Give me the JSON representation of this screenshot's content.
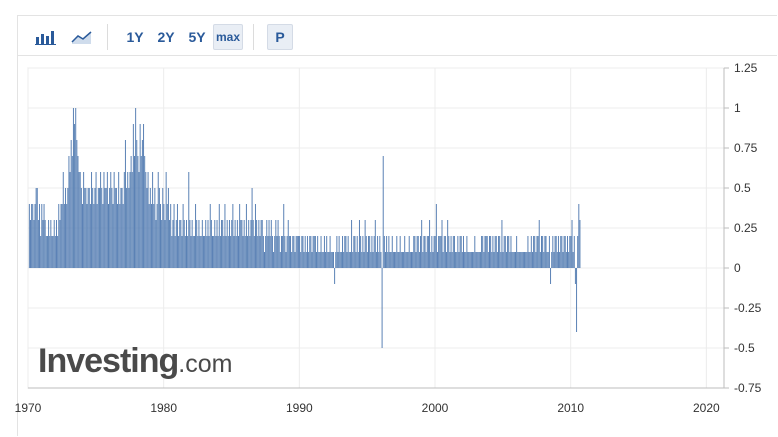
{
  "toolbar": {
    "bar_icon": "bar-chart-icon",
    "area_icon": "area-chart-icon",
    "ranges": [
      "1Y",
      "2Y",
      "5Y"
    ],
    "max_label": "max",
    "p_label": "P"
  },
  "watermark": {
    "brand": "Investing",
    "suffix": ".com"
  },
  "colors": {
    "bar": "#5b82b5",
    "grid": "#ececec",
    "axis": "#bdbdbd"
  },
  "chart_data": {
    "type": "bar",
    "title": "",
    "xlabel": "",
    "ylabel": "",
    "x_tick_labels": [
      "1970",
      "1980",
      "1990",
      "2000",
      "2010",
      "2020"
    ],
    "y_tick_labels": [
      "1.25",
      "1",
      "0.75",
      "0.5",
      "0.25",
      "0",
      "-0.25",
      "-0.5",
      "-0.75"
    ],
    "ylim": [
      -0.75,
      1.25
    ],
    "xlim": [
      1970.0,
      2021.3
    ],
    "grid": true,
    "x_start": 1970.1,
    "x_step": 0.08333,
    "values": [
      0.4,
      0.3,
      0.4,
      0.4,
      0.3,
      0.4,
      0.5,
      0.5,
      0.3,
      0.4,
      0.2,
      0.4,
      0.3,
      0.4,
      0.3,
      0.2,
      0.2,
      0.3,
      0.2,
      0.3,
      0.2,
      0.2,
      0.3,
      0.2,
      0.3,
      0.2,
      0.4,
      0.3,
      0.4,
      0.4,
      0.6,
      0.4,
      0.5,
      0.4,
      0.5,
      0.7,
      0.6,
      0.8,
      0.7,
      1.0,
      0.9,
      1.0,
      0.8,
      0.7,
      0.6,
      0.6,
      0.5,
      0.4,
      0.6,
      0.5,
      0.5,
      0.4,
      0.5,
      0.5,
      0.4,
      0.6,
      0.5,
      0.4,
      0.5,
      0.6,
      0.4,
      0.5,
      0.5,
      0.6,
      0.5,
      0.4,
      0.6,
      0.5,
      0.5,
      0.6,
      0.4,
      0.5,
      0.6,
      0.5,
      0.4,
      0.6,
      0.5,
      0.5,
      0.4,
      0.6,
      0.4,
      0.5,
      0.5,
      0.4,
      0.6,
      0.8,
      0.5,
      0.6,
      0.5,
      0.6,
      0.7,
      0.6,
      0.9,
      0.7,
      1.0,
      0.8,
      0.7,
      0.6,
      0.9,
      0.7,
      0.8,
      0.9,
      0.7,
      0.6,
      0.5,
      0.6,
      0.4,
      0.5,
      0.4,
      0.6,
      0.4,
      0.5,
      0.3,
      0.4,
      0.6,
      0.5,
      0.4,
      0.3,
      0.5,
      0.4,
      0.3,
      0.6,
      0.4,
      0.5,
      0.3,
      0.4,
      0.2,
      0.3,
      0.4,
      0.2,
      0.3,
      0.4,
      0.2,
      0.3,
      0.3,
      0.2,
      0.4,
      0.3,
      0.2,
      0.3,
      0.2,
      0.6,
      0.3,
      0.2,
      0.3,
      0.2,
      0.2,
      0.4,
      0.3,
      0.2,
      0.3,
      0.2,
      0.2,
      0.3,
      0.2,
      0.2,
      0.3,
      0.2,
      0.3,
      0.2,
      0.4,
      0.3,
      0.2,
      0.2,
      0.3,
      0.2,
      0.3,
      0.2,
      0.4,
      0.2,
      0.3,
      0.3,
      0.2,
      0.4,
      0.2,
      0.3,
      0.2,
      0.3,
      0.2,
      0.3,
      0.4,
      0.2,
      0.3,
      0.2,
      0.3,
      0.2,
      0.4,
      0.3,
      0.3,
      0.2,
      0.3,
      0.2,
      0.4,
      0.2,
      0.3,
      0.2,
      0.3,
      0.5,
      0.3,
      0.2,
      0.4,
      0.3,
      0.2,
      0.3,
      0.2,
      0.3,
      0.3,
      0.2,
      0.1,
      0.2,
      0.3,
      0.2,
      0.3,
      0.2,
      0.3,
      0.2,
      0.1,
      0.2,
      0.3,
      0.2,
      0.3,
      0.2,
      0.1,
      0.2,
      0.2,
      0.4,
      0.2,
      0.1,
      0.2,
      0.3,
      0.2,
      0.2,
      0.1,
      0.2,
      0.2,
      0.1,
      0.2,
      0.2,
      0.2,
      0.2,
      0.1,
      0.2,
      0.2,
      0.1,
      0.2,
      0.1,
      0.2,
      0.1,
      0.2,
      0.2,
      0.1,
      0.2,
      0.2,
      0.2,
      0.1,
      0.2,
      0.1,
      0.1,
      0.2,
      0.1,
      0.1,
      0.2,
      0.1,
      0.2,
      0.1,
      0.1,
      0.2,
      0.1,
      0.1,
      0.1,
      -0.1,
      0.1,
      0.2,
      0.1,
      0.2,
      0.1,
      0.1,
      0.2,
      0.1,
      0.2,
      0.2,
      0.1,
      0.2,
      0.1,
      0.1,
      0.3,
      0.1,
      0.2,
      0.2,
      0.1,
      0.2,
      0.1,
      0.3,
      0.2,
      0.1,
      0.2,
      0.1,
      0.3,
      0.2,
      0.1,
      0.2,
      0.2,
      0.1,
      0.2,
      0.1,
      0.2,
      0.3,
      0.1,
      0.2,
      0.1,
      0.2,
      0.1,
      -0.5,
      0.7,
      0.2,
      0.1,
      0.2,
      0.1,
      0.2,
      0.1,
      0.1,
      0.2,
      0.1,
      0.1,
      0.1,
      0.2,
      0.1,
      0.1,
      0.2,
      0.1,
      0.1,
      0.1,
      0.2,
      0.1,
      0.1,
      0.1,
      0.2,
      0.1,
      0.1,
      0.1,
      0.2,
      0.2,
      0.1,
      0.2,
      0.2,
      0.1,
      0.2,
      0.3,
      0.1,
      0.2,
      0.2,
      0.1,
      0.2,
      0.2,
      0.3,
      0.1,
      0.2,
      0.1,
      0.2,
      0.2,
      0.4,
      0.1,
      0.2,
      0.2,
      0.2,
      0.3,
      0.1,
      0.2,
      0.2,
      0.1,
      0.3,
      0.2,
      0.1,
      0.2,
      0.1,
      0.2,
      0.2,
      0.1,
      0.1,
      0.2,
      0.1,
      0.2,
      0.2,
      0.1,
      0.2,
      0.1,
      0.1,
      0.2,
      0.1,
      0.1,
      0.1,
      0.1,
      0.1,
      0.1,
      0.2,
      0.1,
      0.1,
      0.1,
      0.1,
      0.1,
      0.2,
      0.2,
      0.1,
      0.2,
      0.2,
      0.2,
      0.1,
      0.2,
      0.2,
      0.1,
      0.2,
      0.1,
      0.2,
      0.2,
      0.1,
      0.2,
      0.2,
      0.1,
      0.3,
      0.1,
      0.2,
      0.2,
      0.1,
      0.2,
      0.2,
      0.1,
      0.2,
      0.1,
      0.1,
      0.1,
      0.1,
      0.2,
      0.1,
      0.1,
      0.1,
      0.1,
      0.1,
      0.1,
      0.1,
      0.1,
      0.1,
      0.2,
      0.1,
      0.1,
      0.2,
      0.1,
      0.2,
      0.2,
      0.1,
      0.2,
      0.2,
      0.3,
      0.1,
      0.2,
      0.2,
      0.1,
      0.2,
      0.2,
      0.1,
      0.1,
      0.2,
      -0.1,
      0.1,
      0.2,
      0.1,
      0.2,
      0.2,
      0.1,
      0.2,
      0.1,
      0.2,
      0.2,
      0.1,
      0.2,
      0.2,
      0.1,
      0.2,
      0.1,
      0.2,
      0.2,
      0.3,
      0.1,
      0.2,
      -0.1,
      -0.4,
      0.2,
      0.4,
      0.3
    ]
  }
}
